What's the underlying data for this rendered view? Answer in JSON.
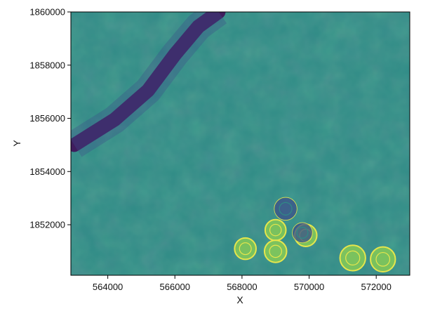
{
  "chart_data": {
    "type": "heatmap",
    "title": "",
    "xlabel": "X",
    "ylabel": "Y",
    "xlim": [
      562900,
      573000
    ],
    "ylim": [
      1850100,
      1860000
    ],
    "x_ticks": [
      564000,
      566000,
      568000,
      570000,
      572000
    ],
    "y_ticks": [
      1852000,
      1854000,
      1856000,
      1858000,
      1860000
    ],
    "x_tick_labels": [
      "564000",
      "566000",
      "568000",
      "570000",
      "572000"
    ],
    "y_tick_labels": [
      "1852000",
      "1854000",
      "1856000",
      "1858000",
      "1860000"
    ],
    "colormap": "viridis",
    "colorbar": false,
    "grid": false,
    "colors": {
      "background": "#2f8b86",
      "river": "#3f1d5e",
      "low": "#3b4f8a",
      "bright": "#8fd14f",
      "highlight": "#e6e64c"
    },
    "features": {
      "river": [
        [
          563000,
          1855000
        ],
        [
          564200,
          1855950
        ],
        [
          565200,
          1857050
        ],
        [
          566000,
          1858400
        ],
        [
          566700,
          1859450
        ],
        [
          567300,
          1860000
        ]
      ],
      "pivots": [
        {
          "x": 569300,
          "y": 1852600,
          "r": 340,
          "tone": "dark"
        },
        {
          "x": 569900,
          "y": 1851600,
          "r": 330,
          "tone": "bright"
        },
        {
          "x": 569000,
          "y": 1851800,
          "r": 310,
          "tone": "bright"
        },
        {
          "x": 569800,
          "y": 1851700,
          "r": 300,
          "tone": "dark"
        },
        {
          "x": 568100,
          "y": 1851100,
          "r": 320,
          "tone": "bright"
        },
        {
          "x": 569000,
          "y": 1851000,
          "r": 330,
          "tone": "bright"
        },
        {
          "x": 571300,
          "y": 1850750,
          "r": 380,
          "tone": "bright"
        },
        {
          "x": 572200,
          "y": 1850700,
          "r": 370,
          "tone": "bright"
        }
      ]
    }
  }
}
